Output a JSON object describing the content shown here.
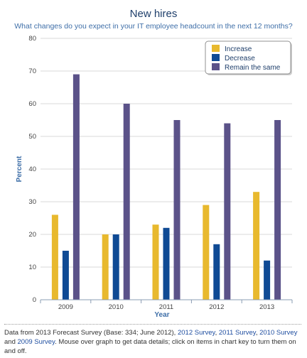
{
  "chart_data": {
    "type": "bar",
    "title": "New hires",
    "subtitle": "What changes do you expect in your IT employee headcount in the next 12 months?",
    "xlabel": "Year",
    "ylabel": "Percent",
    "categories": [
      "2009",
      "2010",
      "2011",
      "2012",
      "2013"
    ],
    "ylim": [
      0,
      80
    ],
    "yticks": [
      0,
      10,
      20,
      30,
      40,
      50,
      60,
      70,
      80
    ],
    "grid": true,
    "legend_position": "top-right",
    "series": [
      {
        "name": "Increase",
        "color": "#e8b92e",
        "values": [
          26,
          20,
          23,
          29,
          33
        ]
      },
      {
        "name": "Decrease",
        "color": "#0f4a94",
        "values": [
          15,
          20,
          22,
          17,
          12
        ]
      },
      {
        "name": "Remain the same",
        "color": "#5b5289",
        "values": [
          69,
          60,
          55,
          54,
          55
        ]
      }
    ]
  },
  "footnote": {
    "text_before": "Data from 2013 Forecast Survey (Base: 334; June 2012), ",
    "link_2012": "2012 Survey",
    "link_2011": "2011 Survey",
    "link_2010": "2010 Survey",
    "link_2009": "2009 Survey",
    "sep": ", ",
    "and": " and ",
    "text_after": ". Mouse over graph to get data details; click on items in chart key to turn them on and off."
  }
}
